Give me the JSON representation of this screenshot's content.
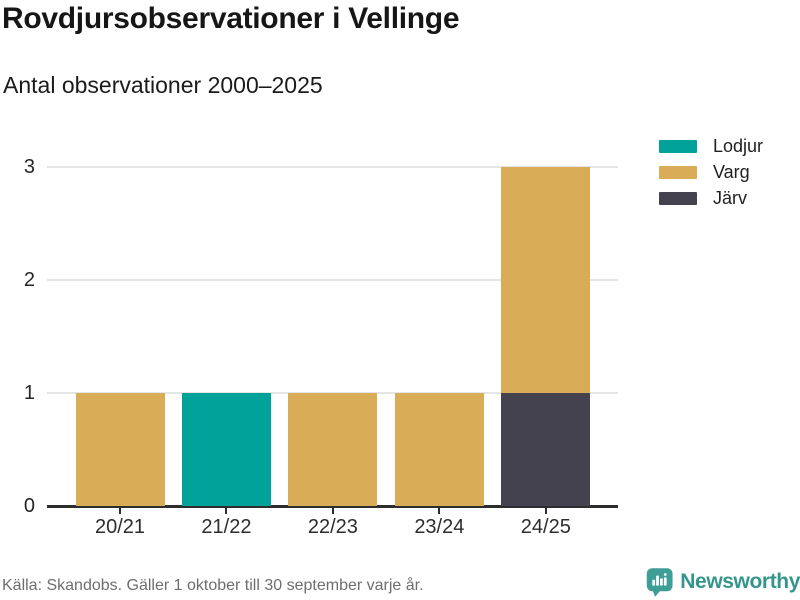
{
  "header": {
    "title": "Rovdjursobservationer i Vellinge",
    "subtitle": "Antal observationer 2000–2025"
  },
  "chart_data": {
    "type": "bar",
    "stacked": true,
    "title": "Rovdjursobservationer i Vellinge",
    "subtitle": "Antal observationer 2000–2025",
    "categories": [
      "20/21",
      "21/22",
      "22/23",
      "23/24",
      "24/25"
    ],
    "series": [
      {
        "name": "Lodjur",
        "color": "#00a29a",
        "values": [
          0,
          1,
          0,
          0,
          0
        ]
      },
      {
        "name": "Varg",
        "color": "#d9ac58",
        "values": [
          1,
          0,
          1,
          1,
          2
        ]
      },
      {
        "name": "Järv",
        "color": "#454250",
        "values": [
          0,
          0,
          0,
          0,
          1
        ]
      }
    ],
    "stack_order_bottom_to_top": [
      "Järv",
      "Varg",
      "Lodjur"
    ],
    "xlabel": "",
    "ylabel": "",
    "ylim": [
      0,
      3
    ],
    "yticks": [
      0,
      1,
      2,
      3
    ],
    "grid": true,
    "legend_position": "top-right"
  },
  "footer": {
    "source": "Källa: Skandobs. Gäller 1 oktober till 30 september varje år.",
    "brand": "Newsworthy"
  },
  "colors": {
    "axis": "#2d2d2d",
    "grid": "#e5e5e5",
    "brand_teal": "#3e9d95",
    "brand_text_teal": "#35968e"
  }
}
